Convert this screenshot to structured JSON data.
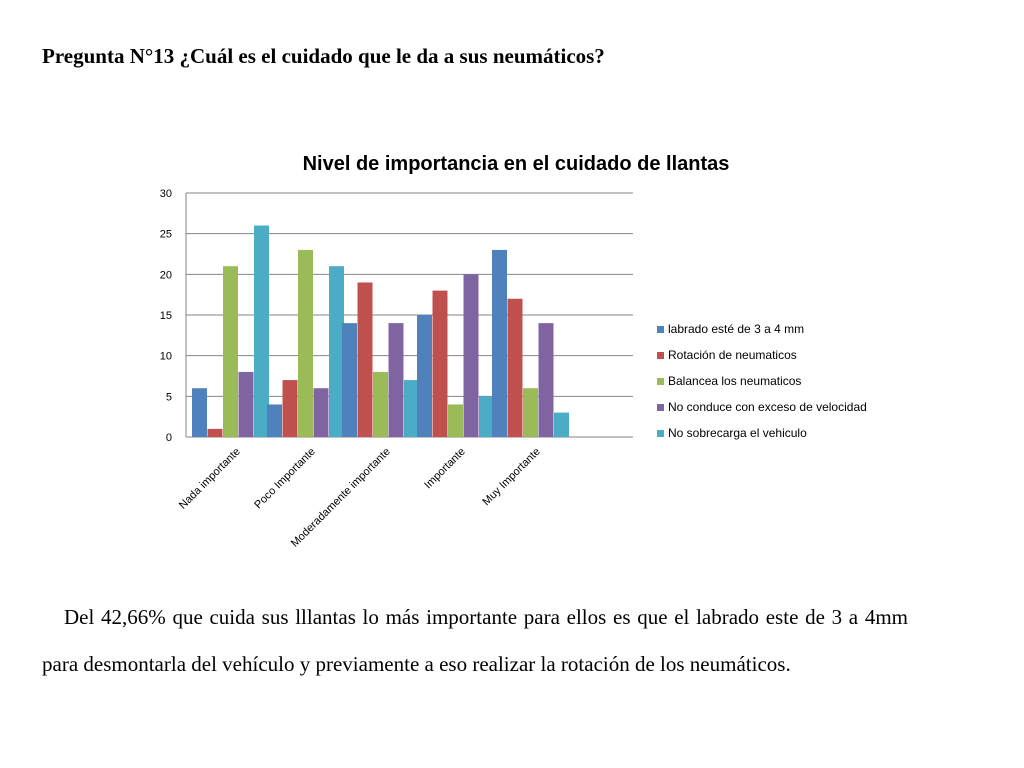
{
  "question": "Pregunta N°13 ¿Cuál es el cuidado que le da a sus neumáticos?",
  "paragraph": "Del 42,66% que cuida sus lllantas lo más importante para ellos es que el labrado este de 3 a 4mm para desmontarla del vehículo y previamente a eso realizar la rotación de los neumáticos.",
  "chart_data": {
    "type": "bar",
    "title": "Nivel de importancia en el cuidado de llantas",
    "xlabel": "",
    "ylabel": "",
    "ylim": [
      0,
      30
    ],
    "yticks": [
      0,
      5,
      10,
      15,
      20,
      25,
      30
    ],
    "grid": true,
    "legend_position": "right",
    "categories": [
      "Nada importante",
      "Poco Importante",
      "Moderadamente importante",
      "Importante",
      "Muy Importante"
    ],
    "series": [
      {
        "name": "labrado esté de 3 a 4 mm",
        "color": "#4F81BD",
        "values": [
          6,
          4,
          14,
          15,
          23
        ]
      },
      {
        "name": "Rotación de neumaticos",
        "color": "#C0504D",
        "values": [
          1,
          7,
          19,
          18,
          17
        ]
      },
      {
        "name": "Balancea los neumaticos",
        "color": "#9BBB59",
        "values": [
          21,
          23,
          8,
          4,
          6
        ]
      },
      {
        "name": "No conduce con exceso de velocidad",
        "color": "#8064A2",
        "values": [
          8,
          6,
          14,
          20,
          14
        ]
      },
      {
        "name": "No sobrecarga el vehiculo",
        "color": "#4BACC6",
        "values": [
          26,
          21,
          7,
          5,
          3
        ]
      }
    ]
  }
}
